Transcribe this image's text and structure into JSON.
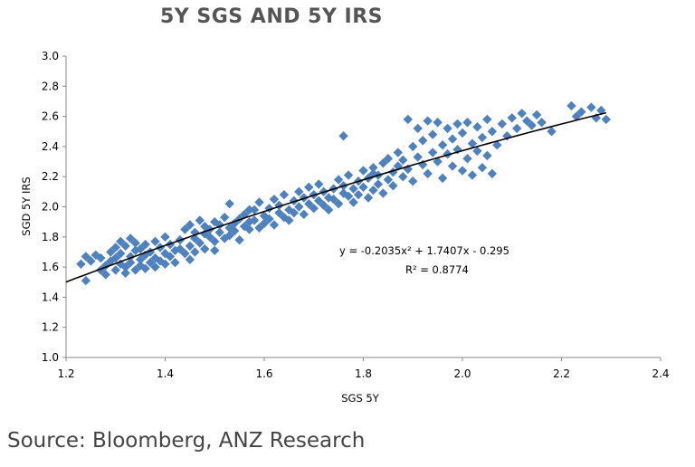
{
  "chart_data": {
    "type": "scatter",
    "title": "5Y SGS AND 5Y IRS",
    "xlabel": "SGS 5Y",
    "ylabel": "SGD 5Y IRS",
    "xlim": [
      1.2,
      2.4
    ],
    "ylim": [
      1.0,
      3.0
    ],
    "x_ticks": [
      "1.2",
      "1.4",
      "1.6",
      "1.8",
      "2.0",
      "2.2",
      "2.4"
    ],
    "y_ticks": [
      "1.0",
      "1.2",
      "1.4",
      "1.6",
      "1.8",
      "2.0",
      "2.2",
      "2.4",
      "2.6",
      "2.8",
      "3.0"
    ],
    "marker_color": "#4f81bd",
    "trendline": {
      "type": "polynomial",
      "coefficients": {
        "a": -0.2035,
        "b": 1.7407,
        "c": -0.295
      },
      "x_range": [
        1.2,
        2.29
      ],
      "equation_label": "y = -0.2035x² + 1.7407x - 0.295",
      "r2_label": "R² = 0.8774",
      "color": "#000000"
    },
    "points": [
      [
        1.23,
        1.62
      ],
      [
        1.24,
        1.51
      ],
      [
        1.24,
        1.67
      ],
      [
        1.25,
        1.64
      ],
      [
        1.26,
        1.68
      ],
      [
        1.27,
        1.58
      ],
      [
        1.27,
        1.66
      ],
      [
        1.28,
        1.61
      ],
      [
        1.28,
        1.55
      ],
      [
        1.29,
        1.7
      ],
      [
        1.29,
        1.64
      ],
      [
        1.3,
        1.58
      ],
      [
        1.3,
        1.73
      ],
      [
        1.3,
        1.66
      ],
      [
        1.31,
        1.62
      ],
      [
        1.31,
        1.77
      ],
      [
        1.31,
        1.69
      ],
      [
        1.32,
        1.6
      ],
      [
        1.32,
        1.74
      ],
      [
        1.32,
        1.56
      ],
      [
        1.33,
        1.79
      ],
      [
        1.33,
        1.67
      ],
      [
        1.33,
        1.63
      ],
      [
        1.34,
        1.71
      ],
      [
        1.34,
        1.58
      ],
      [
        1.34,
        1.76
      ],
      [
        1.35,
        1.65
      ],
      [
        1.35,
        1.61
      ],
      [
        1.35,
        1.72
      ],
      [
        1.36,
        1.68
      ],
      [
        1.36,
        1.59
      ],
      [
        1.36,
        1.75
      ],
      [
        1.37,
        1.63
      ],
      [
        1.37,
        1.7
      ],
      [
        1.38,
        1.66
      ],
      [
        1.38,
        1.77
      ],
      [
        1.38,
        1.6
      ],
      [
        1.39,
        1.73
      ],
      [
        1.39,
        1.64
      ],
      [
        1.4,
        1.69
      ],
      [
        1.4,
        1.62
      ],
      [
        1.4,
        1.8
      ],
      [
        1.41,
        1.75
      ],
      [
        1.41,
        1.67
      ],
      [
        1.42,
        1.71
      ],
      [
        1.42,
        1.63
      ],
      [
        1.43,
        1.78
      ],
      [
        1.43,
        1.72
      ],
      [
        1.44,
        1.85
      ],
      [
        1.44,
        1.69
      ],
      [
        1.45,
        1.74
      ],
      [
        1.45,
        1.88
      ],
      [
        1.45,
        1.65
      ],
      [
        1.46,
        1.79
      ],
      [
        1.46,
        1.83
      ],
      [
        1.47,
        1.76
      ],
      [
        1.47,
        1.91
      ],
      [
        1.48,
        1.82
      ],
      [
        1.48,
        1.72
      ],
      [
        1.48,
        1.87
      ],
      [
        1.49,
        1.8
      ],
      [
        1.49,
        1.85
      ],
      [
        1.5,
        1.77
      ],
      [
        1.5,
        1.9
      ],
      [
        1.5,
        1.71
      ],
      [
        1.51,
        1.83
      ],
      [
        1.51,
        1.88
      ],
      [
        1.52,
        1.79
      ],
      [
        1.52,
        1.93
      ],
      [
        1.53,
        1.86
      ],
      [
        1.53,
        1.81
      ],
      [
        1.53,
        2.02
      ],
      [
        1.54,
        1.89
      ],
      [
        1.54,
        1.84
      ],
      [
        1.55,
        1.92
      ],
      [
        1.55,
        1.78
      ],
      [
        1.56,
        1.87
      ],
      [
        1.56,
        1.95
      ],
      [
        1.57,
        1.9
      ],
      [
        1.57,
        1.85
      ],
      [
        1.58,
        1.98
      ],
      [
        1.58,
        1.91
      ],
      [
        1.59,
        1.86
      ],
      [
        1.59,
        2.03
      ],
      [
        1.6,
        1.94
      ],
      [
        1.6,
        1.89
      ],
      [
        1.61,
        1.99
      ],
      [
        1.61,
        1.92
      ],
      [
        1.62,
        2.05
      ],
      [
        1.62,
        1.88
      ],
      [
        1.63,
        1.96
      ],
      [
        1.63,
        2.01
      ],
      [
        1.64,
        1.93
      ],
      [
        1.64,
        2.08
      ],
      [
        1.65,
        1.98
      ],
      [
        1.65,
        1.91
      ],
      [
        1.66,
        2.04
      ],
      [
        1.66,
        1.96
      ],
      [
        1.67,
        2.1
      ],
      [
        1.67,
        2.0
      ],
      [
        1.68,
        1.95
      ],
      [
        1.68,
        2.06
      ],
      [
        1.69,
        2.02
      ],
      [
        1.69,
        2.13
      ],
      [
        1.7,
        1.99
      ],
      [
        1.7,
        2.08
      ],
      [
        1.71,
        2.04
      ],
      [
        1.71,
        2.15
      ],
      [
        1.72,
        2.01
      ],
      [
        1.72,
        2.1
      ],
      [
        1.73,
        2.06
      ],
      [
        1.73,
        1.98
      ],
      [
        1.74,
        2.12
      ],
      [
        1.74,
        2.05
      ],
      [
        1.75,
        2.18
      ],
      [
        1.75,
        2.02
      ],
      [
        1.76,
        2.09
      ],
      [
        1.76,
        2.14
      ],
      [
        1.77,
        2.07
      ],
      [
        1.77,
        2.21
      ],
      [
        1.78,
        2.03
      ],
      [
        1.78,
        2.12
      ],
      [
        1.79,
        2.17
      ],
      [
        1.79,
        2.08
      ],
      [
        1.8,
        2.24
      ],
      [
        1.8,
        2.13
      ],
      [
        1.81,
        2.06
      ],
      [
        1.81,
        2.19
      ],
      [
        1.82,
        2.26
      ],
      [
        1.82,
        2.11
      ],
      [
        1.83,
        2.21
      ],
      [
        1.83,
        2.15
      ],
      [
        1.84,
        2.29
      ],
      [
        1.84,
        2.09
      ],
      [
        1.85,
        2.18
      ],
      [
        1.85,
        2.32
      ],
      [
        1.86,
        2.23
      ],
      [
        1.86,
        2.14
      ],
      [
        1.87,
        2.27
      ],
      [
        1.87,
        2.36
      ],
      [
        1.88,
        2.2
      ],
      [
        1.88,
        2.31
      ],
      [
        1.89,
        2.58
      ],
      [
        1.89,
        2.25
      ],
      [
        1.9,
        2.4
      ],
      [
        1.9,
        2.17
      ],
      [
        1.91,
        2.33
      ],
      [
        1.91,
        2.52
      ],
      [
        1.92,
        2.28
      ],
      [
        1.92,
        2.44
      ],
      [
        1.93,
        2.57
      ],
      [
        1.93,
        2.22
      ],
      [
        1.94,
        2.36
      ],
      [
        1.94,
        2.48
      ],
      [
        1.95,
        2.3
      ],
      [
        1.95,
        2.56
      ],
      [
        1.96,
        2.41
      ],
      [
        1.96,
        2.19
      ],
      [
        1.97,
        2.35
      ],
      [
        1.97,
        2.52
      ],
      [
        1.98,
        2.27
      ],
      [
        1.98,
        2.45
      ],
      [
        1.99,
        2.55
      ],
      [
        1.99,
        2.38
      ],
      [
        2.0,
        2.24
      ],
      [
        2.0,
        2.49
      ],
      [
        2.01,
        2.32
      ],
      [
        2.01,
        2.56
      ],
      [
        2.02,
        2.42
      ],
      [
        2.02,
        2.21
      ],
      [
        2.03,
        2.37
      ],
      [
        2.03,
        2.53
      ],
      [
        2.04,
        2.26
      ],
      [
        2.04,
        2.46
      ],
      [
        2.05,
        2.58
      ],
      [
        2.05,
        2.34
      ],
      [
        2.06,
        2.22
      ],
      [
        2.06,
        2.5
      ],
      [
        2.07,
        2.41
      ],
      [
        2.08,
        2.55
      ],
      [
        2.09,
        2.47
      ],
      [
        2.1,
        2.59
      ],
      [
        2.11,
        2.52
      ],
      [
        2.12,
        2.62
      ],
      [
        2.13,
        2.57
      ],
      [
        2.14,
        2.54
      ],
      [
        2.15,
        2.61
      ],
      [
        2.16,
        2.56
      ],
      [
        2.18,
        2.5
      ],
      [
        2.22,
        2.67
      ],
      [
        2.23,
        2.6
      ],
      [
        2.24,
        2.63
      ],
      [
        2.26,
        2.66
      ],
      [
        2.27,
        2.59
      ],
      [
        2.28,
        2.64
      ],
      [
        2.29,
        2.58
      ],
      [
        1.76,
        2.47
      ],
      [
        1.82,
        2.22
      ],
      [
        1.57,
        1.98
      ],
      [
        1.46,
        1.7
      ]
    ]
  },
  "source": "Source: Bloomberg, ANZ Research"
}
